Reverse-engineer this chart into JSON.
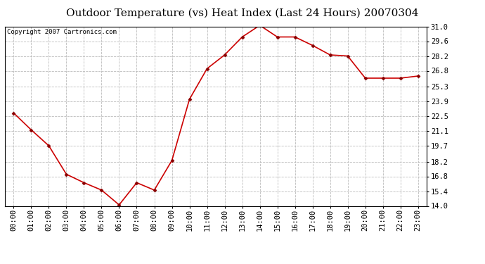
{
  "title": "Outdoor Temperature (vs) Heat Index (Last 24 Hours) 20070304",
  "copyright_text": "Copyright 2007 Cartronics.com",
  "x_labels": [
    "00:00",
    "01:00",
    "02:00",
    "03:00",
    "04:00",
    "05:00",
    "06:00",
    "07:00",
    "08:00",
    "09:00",
    "10:00",
    "11:00",
    "12:00",
    "13:00",
    "14:00",
    "15:00",
    "16:00",
    "17:00",
    "18:00",
    "19:00",
    "20:00",
    "21:00",
    "22:00",
    "23:00"
  ],
  "y_values": [
    22.8,
    21.2,
    19.7,
    17.0,
    16.2,
    15.5,
    14.1,
    16.2,
    15.5,
    18.3,
    24.1,
    27.0,
    28.3,
    30.0,
    31.1,
    30.0,
    30.0,
    29.2,
    28.3,
    28.2,
    26.1,
    26.1,
    26.1,
    26.3
  ],
  "line_color": "#cc0000",
  "marker": "D",
  "marker_color": "#880000",
  "marker_size": 2.5,
  "ylim_min": 14.0,
  "ylim_max": 31.0,
  "yticks": [
    14.0,
    15.4,
    16.8,
    18.2,
    19.7,
    21.1,
    22.5,
    23.9,
    25.3,
    26.8,
    28.2,
    29.6,
    31.0
  ],
  "background_color": "#ffffff",
  "plot_bg_color": "#ffffff",
  "grid_color": "#bbbbbb",
  "title_fontsize": 11,
  "tick_fontsize": 7.5,
  "copyright_fontsize": 6.5
}
